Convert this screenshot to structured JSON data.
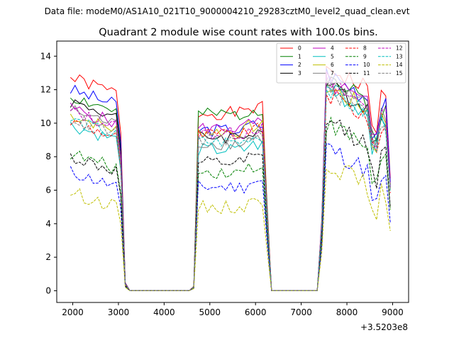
{
  "suptitle": "Data file: modeM0/AS1A10_021T10_9000004210_29283cztM0_level2_quad_clean.evt",
  "chart_data": {
    "type": "line",
    "title": "Quadrant 2 module wise count rates with 100.0s bins.",
    "xlabel": "",
    "ylabel": "",
    "x_offset_label": "+3.5203e8",
    "xlim": [
      1650,
      9350
    ],
    "ylim": [
      -0.7,
      14.9
    ],
    "x_ticks": [
      2000,
      3000,
      4000,
      5000,
      6000,
      7000,
      8000,
      9000
    ],
    "y_ticks": [
      0,
      2,
      4,
      6,
      8,
      10,
      12,
      14
    ],
    "grid": false,
    "legend_placement": "top-right",
    "legend_columns": 4,
    "profile": {
      "t_start": 1950,
      "t_step": 100,
      "off_start_1": 3250,
      "off_end_1": 4600,
      "on_start_2": 4700,
      "on_end_2": 6200,
      "off_start_3": 6300,
      "off_end_3": 7350,
      "on_start_4": 7550,
      "t_end": 8950
    },
    "series": [
      {
        "name": "0",
        "color": "#ff0000",
        "dash": "solid",
        "level_a": 12.7,
        "level_b": 10.6,
        "level_c": 12.2
      },
      {
        "name": "1",
        "color": "#008000",
        "dash": "solid",
        "level_a": 11.6,
        "level_b": 10.5,
        "level_c": 11.5
      },
      {
        "name": "2",
        "color": "#0000ff",
        "dash": "solid",
        "level_a": 12.0,
        "level_b": 9.6,
        "level_c": 11.8
      },
      {
        "name": "3",
        "color": "#000000",
        "dash": "solid",
        "level_a": 11.3,
        "level_b": 9.2,
        "level_c": 11.2
      },
      {
        "name": "4",
        "color": "#bf00bf",
        "dash": "solid",
        "level_a": 10.9,
        "level_b": 9.7,
        "level_c": 11.3
      },
      {
        "name": "5",
        "color": "#00bfbf",
        "dash": "solid",
        "level_a": 9.9,
        "level_b": 8.4,
        "level_c": 10.9
      },
      {
        "name": "6",
        "color": "#bfbf00",
        "dash": "solid",
        "level_a": 10.5,
        "level_b": 9.5,
        "level_c": 11.0
      },
      {
        "name": "7",
        "color": "#808080",
        "dash": "solid",
        "level_a": 10.8,
        "level_b": 8.8,
        "level_c": 11.1
      },
      {
        "name": "8",
        "color": "#ff0000",
        "dash": "dashed",
        "level_a": 10.1,
        "level_b": 9.3,
        "level_c": 10.6
      },
      {
        "name": "9",
        "color": "#008000",
        "dash": "dashed",
        "level_a": 8.2,
        "level_b": 7.1,
        "level_c": 8.8
      },
      {
        "name": "10",
        "color": "#0000ff",
        "dash": "dashed",
        "level_a": 7.1,
        "level_b": 6.2,
        "level_c": 7.4
      },
      {
        "name": "11",
        "color": "#000000",
        "dash": "dashed",
        "level_a": 8.0,
        "level_b": 7.6,
        "level_c": 9.0
      },
      {
        "name": "12",
        "color": "#bf00bf",
        "dash": "dashed",
        "level_a": 10.7,
        "level_b": 9.4,
        "level_c": 11.2
      },
      {
        "name": "13",
        "color": "#00bfbf",
        "dash": "dashed",
        "level_a": 10.2,
        "level_b": 8.9,
        "level_c": 10.8
      },
      {
        "name": "14",
        "color": "#bfbf00",
        "dash": "dashed",
        "level_a": 5.9,
        "level_b": 5.0,
        "level_c": 6.5
      },
      {
        "name": "15",
        "color": "#808080",
        "dash": "dashed",
        "level_a": 10.3,
        "level_b": 9.0,
        "level_c": 10.9
      }
    ]
  }
}
